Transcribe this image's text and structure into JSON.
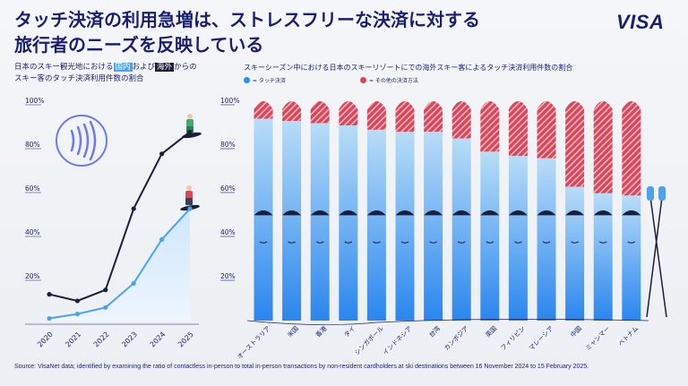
{
  "header": {
    "title_line1": "タッチ決済の利用急増は、ストレスフリーな決済に対する",
    "title_line2": "旅行者のニーズを反映している",
    "logo": "VISA"
  },
  "left_chart": {
    "subtitle_prefix": "日本のスキー観光地における",
    "subtitle_tag1": "国内",
    "subtitle_mid": "および",
    "subtitle_tag2": "海外",
    "subtitle_suffix": "からの",
    "subtitle_line2": "スキー客のタッチ決済利用件数の割合"
  },
  "right_chart": {
    "subtitle": "スキーシーズン中における日本のスキーリゾートにでの海外スキー客によるタッチ決済利用件数の割合",
    "legend_contactless": "= タッチ決済",
    "legend_other": "= その他の決済方法"
  },
  "source": "Source: VisaNet data; identified by examining the ratio of contactless in-person to total in-person transactions by non-resident cardholders at ski destinations between 16 November 2024 to 15 February 2025.",
  "colors": {
    "navy": "#1a1f71",
    "domestic": "#4aa3f0",
    "overseas": "#1a1f3a",
    "ski_blue_top": "#a7d4f5",
    "ski_blue_bottom": "#2e8ff0",
    "ski_red": "#d8475a"
  },
  "icons": [
    "contactless-icon",
    "snowboarder-icon",
    "ski-poles-icon"
  ],
  "chart_data": [
    {
      "type": "line",
      "x": [
        "2020",
        "2021",
        "2022",
        "2023",
        "2024",
        "2025"
      ],
      "series": [
        {
          "name": "海外",
          "values": [
            12,
            9,
            14,
            51,
            76,
            86
          ]
        },
        {
          "name": "国内",
          "values": [
            1,
            3,
            6,
            17,
            37,
            51
          ]
        }
      ],
      "yticks": [
        "20%",
        "40%",
        "60%",
        "80%",
        "100%"
      ],
      "ylim": [
        0,
        100
      ],
      "grid": false
    },
    {
      "type": "bar",
      "stacked": true,
      "categories": [
        "オーストラリア",
        "米国",
        "香港",
        "タイ",
        "シンガポール",
        "インドネシア",
        "台湾",
        "カンボジア",
        "英国",
        "フィリピン",
        "マレーシア",
        "中国",
        "ミャンマー",
        "ベトナム"
      ],
      "series": [
        {
          "name": "= タッチ決済",
          "values": [
            92,
            91,
            90,
            89,
            87,
            86,
            86,
            83,
            77,
            75,
            74,
            61,
            58,
            57
          ]
        },
        {
          "name": "= その他の決済方法",
          "values": [
            8,
            9,
            10,
            11,
            13,
            14,
            14,
            17,
            23,
            25,
            26,
            39,
            42,
            43
          ]
        }
      ],
      "yticks": [
        "20%",
        "40%",
        "60%",
        "80%",
        "100%"
      ],
      "ylim": [
        0,
        100
      ],
      "legend": "top-left",
      "grid": false
    }
  ]
}
